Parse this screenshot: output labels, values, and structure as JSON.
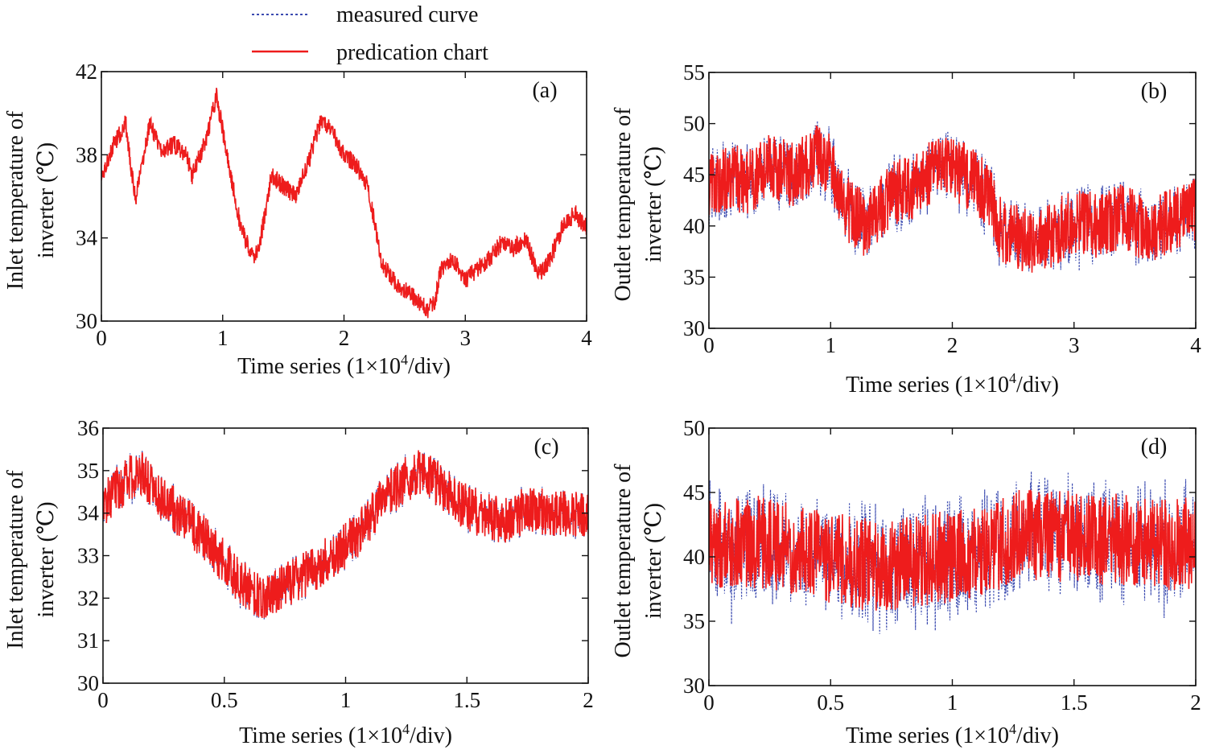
{
  "legend": [
    {
      "label": "measured curve",
      "color": "#3b4bb0",
      "dash": "dotted"
    },
    {
      "label": "predication chart",
      "color": "#ee1c1c",
      "dash": "solid"
    }
  ],
  "chart_data": [
    {
      "id": "a",
      "type": "line",
      "panel_label": "(a)",
      "xlabel": "Time  series (1×10",
      "xlabel_sup": "4",
      "xlabel_tail": "/div)",
      "ylabel_lines": [
        "Inlet temperature of",
        "inverter (℃)"
      ],
      "xlim": [
        0,
        4
      ],
      "ylim": [
        30,
        42
      ],
      "xticks": [
        0,
        1,
        2,
        3,
        4
      ],
      "xtick_labels": [
        "0",
        "1",
        "2",
        "3",
        "4"
      ],
      "yticks": [
        30,
        34,
        38,
        42
      ],
      "ytick_labels": [
        "30",
        "34",
        "38",
        "42"
      ],
      "noise": 0.45,
      "measured_extra": 0.0,
      "series": [
        {
          "name": "measured curve",
          "x": [
            0,
            0.1,
            0.2,
            0.28,
            0.4,
            0.5,
            0.6,
            0.7,
            0.75,
            0.85,
            0.95,
            1.05,
            1.15,
            1.25,
            1.3,
            1.4,
            1.5,
            1.6,
            1.7,
            1.8,
            1.9,
            2.0,
            2.1,
            2.2,
            2.3,
            2.4,
            2.5,
            2.6,
            2.7,
            2.75,
            2.8,
            2.9,
            3.0,
            3.1,
            3.2,
            3.3,
            3.4,
            3.5,
            3.6,
            3.7,
            3.8,
            3.9,
            4.0
          ],
          "y": [
            37,
            38.5,
            39.5,
            35.8,
            39.5,
            38.2,
            38.5,
            38,
            37,
            38.5,
            40.8,
            37.5,
            34.5,
            33,
            33.5,
            37,
            36.5,
            36,
            37.5,
            39.5,
            39.2,
            38,
            37.5,
            36.5,
            33,
            32,
            31.5,
            31,
            30.5,
            31,
            32.5,
            33,
            32,
            32.5,
            33,
            33.8,
            33.5,
            34,
            32.2,
            33,
            34.5,
            35.2,
            34.5
          ]
        },
        {
          "name": "predication chart",
          "same_as": "measured curve"
        }
      ]
    },
    {
      "id": "b",
      "type": "line",
      "panel_label": "(b)",
      "xlabel": "Time  series (1×10",
      "xlabel_sup": "4",
      "xlabel_tail": "/div)",
      "ylabel_lines": [
        "Outlet temperature of",
        "inverter (℃)"
      ],
      "xlim": [
        0,
        4
      ],
      "ylim": [
        30,
        55
      ],
      "xticks": [
        0,
        1,
        2,
        3,
        4
      ],
      "xtick_labels": [
        "0",
        "1",
        "2",
        "3",
        "4"
      ],
      "yticks": [
        30,
        35,
        40,
        45,
        50,
        55
      ],
      "ytick_labels": [
        "30",
        "35",
        "40",
        "45",
        "50",
        "55"
      ],
      "noise": 3.2,
      "measured_extra": 0.3,
      "series": [
        {
          "name": "measured curve",
          "x": [
            0,
            0.2,
            0.3,
            0.5,
            0.7,
            0.9,
            1.0,
            1.1,
            1.3,
            1.5,
            1.7,
            1.9,
            2.1,
            2.3,
            2.4,
            2.6,
            2.8,
            3.0,
            3.2,
            3.4,
            3.6,
            3.8,
            4.0
          ],
          "y": [
            44,
            45,
            44,
            46,
            45,
            47,
            46,
            42,
            40,
            43,
            44,
            46,
            45,
            43,
            39.5,
            38.5,
            39,
            40.5,
            40,
            41,
            39.5,
            40.5,
            41.5
          ]
        },
        {
          "name": "predication chart",
          "same_as": "measured curve"
        }
      ]
    },
    {
      "id": "c",
      "type": "line",
      "panel_label": "(c)",
      "xlabel": "Time  series (1×10",
      "xlabel_sup": "4",
      "xlabel_tail": "/div)",
      "ylabel_lines": [
        "Inlet temperature of",
        "inverter (℃)"
      ],
      "xlim": [
        0,
        2
      ],
      "ylim": [
        30,
        36
      ],
      "xticks": [
        0,
        0.5,
        1,
        1.5,
        2
      ],
      "xtick_labels": [
        "0",
        "0.5",
        "1",
        "1.5",
        "2"
      ],
      "yticks": [
        30,
        31,
        32,
        33,
        34,
        35,
        36
      ],
      "ytick_labels": [
        "30",
        "31",
        "32",
        "33",
        "34",
        "35",
        "36"
      ],
      "noise": 0.55,
      "measured_extra": 0.12,
      "series": [
        {
          "name": "measured curve",
          "x": [
            0,
            0.1,
            0.15,
            0.25,
            0.35,
            0.45,
            0.55,
            0.65,
            0.75,
            0.85,
            0.95,
            1.05,
            1.15,
            1.25,
            1.32,
            1.45,
            1.55,
            1.65,
            1.75,
            1.85,
            2.0
          ],
          "y": [
            34.2,
            34.8,
            35,
            34.3,
            33.8,
            33.2,
            32.5,
            32,
            32.3,
            32.6,
            33,
            33.5,
            34.3,
            34.8,
            35,
            34.3,
            34,
            33.8,
            34.1,
            34,
            34
          ]
        },
        {
          "name": "predication chart",
          "same_as": "measured curve"
        }
      ]
    },
    {
      "id": "d",
      "type": "line",
      "panel_label": "(d)",
      "xlabel": "Time  series (1×10",
      "xlabel_sup": "4",
      "xlabel_tail": "/div)",
      "ylabel_lines": [
        "Outlet temperature of",
        "inverter (℃)"
      ],
      "xlim": [
        0,
        2
      ],
      "ylim": [
        30,
        50
      ],
      "xticks": [
        0,
        0.5,
        1,
        1.5,
        2
      ],
      "xtick_labels": [
        "0",
        "0.5",
        "1",
        "1.5",
        "2"
      ],
      "yticks": [
        30,
        35,
        40,
        45,
        50
      ],
      "ytick_labels": [
        "30",
        "35",
        "40",
        "45",
        "50"
      ],
      "noise": 3.6,
      "measured_extra": 0.45,
      "series": [
        {
          "name": "measured curve",
          "x": [
            0,
            0.2,
            0.4,
            0.6,
            0.7,
            0.9,
            1.1,
            1.3,
            1.5,
            1.7,
            1.9,
            2.0
          ],
          "y": [
            41,
            41.2,
            40.5,
            39.5,
            39.3,
            39.8,
            40.3,
            41.8,
            41.5,
            41.3,
            41,
            41
          ]
        },
        {
          "name": "predication chart",
          "same_as": "measured curve"
        }
      ]
    }
  ]
}
